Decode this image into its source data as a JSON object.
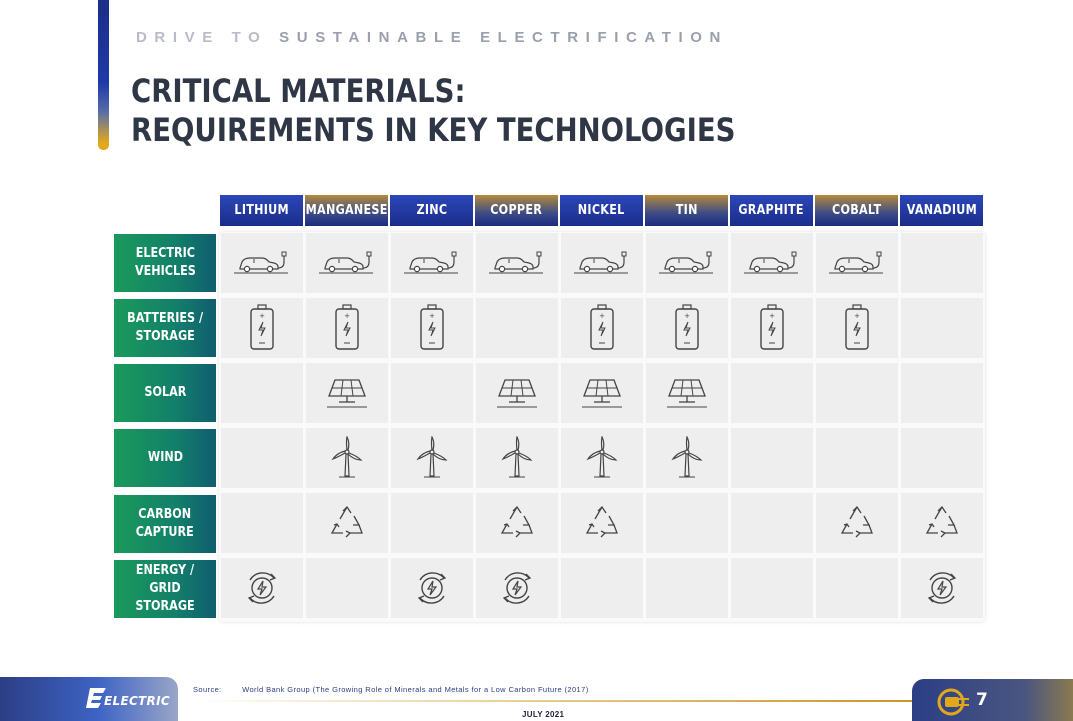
{
  "header": {
    "kicker_part1": "DRIVE TO",
    "kicker_part2": "SUSTAINABLE ELECTRIFICATION",
    "title_line1": "CRITICAL MATERIALS:",
    "title_line2": "REQUIREMENTS IN KEY TECHNOLOGIES"
  },
  "matrix": {
    "materials": [
      "LITHIUM",
      "MANGANESE",
      "ZINC",
      "COPPER",
      "NICKEL",
      "TIN",
      "GRAPHITE",
      "COBALT",
      "VANADIUM"
    ],
    "technologies": [
      {
        "label": "ELECTRIC\nVEHICLES",
        "icon": "electric-car-icon",
        "uses": [
          1,
          1,
          1,
          1,
          1,
          1,
          1,
          1,
          0
        ]
      },
      {
        "label": "BATTERIES /\nSTORAGE",
        "icon": "battery-icon",
        "uses": [
          1,
          1,
          1,
          0,
          1,
          1,
          1,
          1,
          0
        ]
      },
      {
        "label": "SOLAR",
        "icon": "solar-panel-icon",
        "uses": [
          0,
          1,
          0,
          1,
          1,
          1,
          0,
          0,
          0
        ]
      },
      {
        "label": "WIND",
        "icon": "wind-turbine-icon",
        "uses": [
          0,
          1,
          1,
          1,
          1,
          1,
          0,
          0,
          0
        ]
      },
      {
        "label": "CARBON\nCAPTURE",
        "icon": "recycle-icon",
        "uses": [
          0,
          1,
          0,
          1,
          1,
          0,
          0,
          1,
          1
        ]
      },
      {
        "label": "ENERGY /\nGRID STORAGE",
        "icon": "energy-cycle-icon",
        "uses": [
          1,
          0,
          1,
          1,
          0,
          0,
          0,
          0,
          1
        ]
      }
    ]
  },
  "footer": {
    "source_label": "Source:",
    "source_text": "World Bank Group (The Growing Role of Minerals and Metals for a Low Carbon Future (2017)",
    "date": "JULY 2021",
    "logo_text": "ELECTRIC",
    "page_number": "7"
  }
}
